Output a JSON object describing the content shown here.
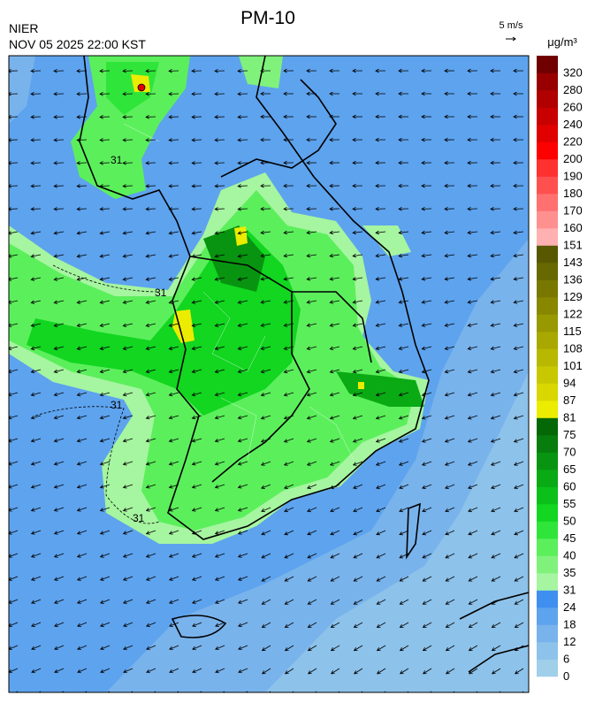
{
  "header": {
    "title": "PM-10",
    "agency": "NIER",
    "datetime": "NOV 05 2025 22:00 KST",
    "wind_scale": "5 m/s",
    "unit": "μg/m³"
  },
  "map": {
    "contour_label": "31"
  },
  "colorbar": {
    "levels": [
      0,
      6,
      12,
      18,
      24,
      31,
      35,
      40,
      45,
      50,
      55,
      60,
      65,
      70,
      75,
      81,
      87,
      94,
      101,
      108,
      115,
      122,
      129,
      136,
      143,
      151,
      160,
      170,
      180,
      190,
      200,
      220,
      240,
      260,
      280,
      320
    ],
    "colors": [
      "#9fcfe9",
      "#8dc2ea",
      "#79b3ec",
      "#5ea3ee",
      "#3f8ff0",
      "#a6f5a0",
      "#80f27c",
      "#5cef5c",
      "#30e53a",
      "#12d620",
      "#0cc01a",
      "#0aaa14",
      "#089410",
      "#067d0c",
      "#046806",
      "#ecec00",
      "#d8d800",
      "#c8c800",
      "#b8b800",
      "#a8a800",
      "#989800",
      "#888800",
      "#787800",
      "#686800",
      "#585800",
      "#ffb0b0",
      "#ff9090",
      "#ff7070",
      "#ff5050",
      "#ff3030",
      "#ff0000",
      "#e00000",
      "#c80000",
      "#b00000",
      "#980000",
      "#700000"
    ]
  }
}
